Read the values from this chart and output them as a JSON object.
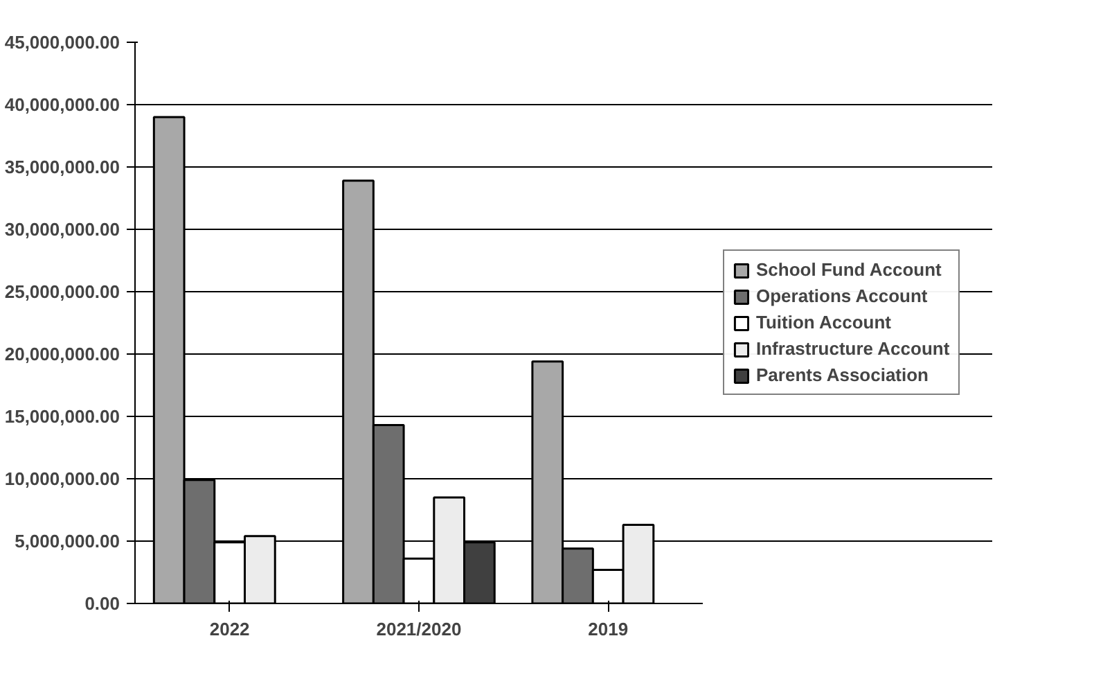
{
  "chart_data": {
    "type": "bar",
    "categories": [
      "2022",
      "2021/2020",
      "2019"
    ],
    "series": [
      {
        "name": "School Fund Account",
        "color": "#a8a8a8",
        "values": [
          39000000,
          33900000,
          19400000
        ]
      },
      {
        "name": "Operations Account",
        "color": "#6e6e6e",
        "values": [
          9900000,
          14300000,
          4400000
        ]
      },
      {
        "name": "Tuition Account",
        "color": "#ffffff",
        "values": [
          4900000,
          3600000,
          2700000
        ]
      },
      {
        "name": "Infrastructure Account",
        "color": "#ececec",
        "values": [
          5400000,
          8500000,
          6300000
        ]
      },
      {
        "name": "Parents Association",
        "color": "#404040",
        "values": [
          null,
          4900000,
          null
        ]
      }
    ],
    "ylim": [
      0,
      45000000
    ],
    "yticks": [
      {
        "value": 0,
        "label": "0.00"
      },
      {
        "value": 5000000,
        "label": "5,000,000.00"
      },
      {
        "value": 10000000,
        "label": "10,000,000.00"
      },
      {
        "value": 15000000,
        "label": "15,000,000.00"
      },
      {
        "value": 20000000,
        "label": "20,000,000.00"
      },
      {
        "value": 25000000,
        "label": "25,000,000.00"
      },
      {
        "value": 30000000,
        "label": "30,000,000.00"
      },
      {
        "value": 35000000,
        "label": "35,000,000.00"
      },
      {
        "value": 40000000,
        "label": "40,000,000.00"
      },
      {
        "value": 45000000,
        "label": "45,000,000.00"
      }
    ],
    "grid": "y",
    "legend": "right"
  }
}
